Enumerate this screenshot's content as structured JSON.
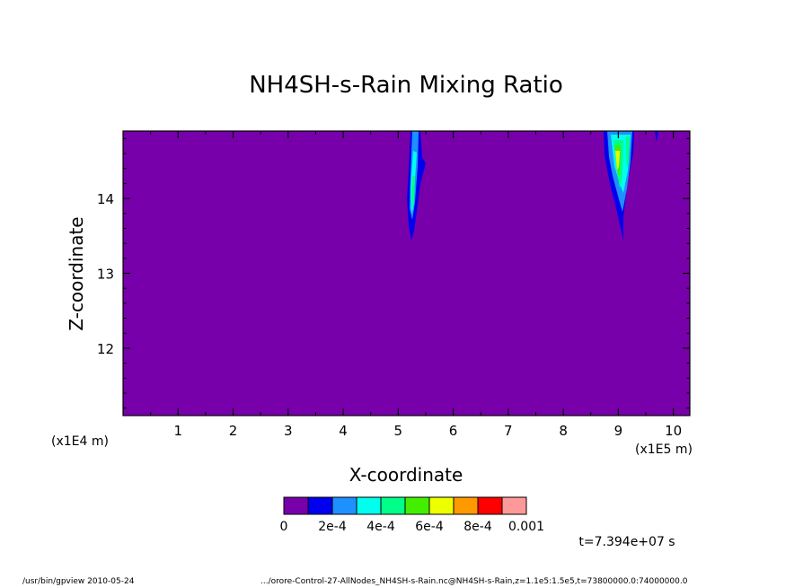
{
  "chart_data": {
    "type": "heatmap",
    "title": "NH4SH-s-Rain Mixing Ratio",
    "xlabel": "X-coordinate",
    "ylabel": "Z-coordinate",
    "x_unit": "(x1E4 m)",
    "x_unit2": "(x1E5 m)",
    "xlim": [
      0,
      10.3
    ],
    "ylim": [
      11.1,
      14.9
    ],
    "x_ticks": [
      1,
      2,
      3,
      4,
      5,
      6,
      7,
      8,
      9,
      10
    ],
    "y_ticks": [
      12,
      13,
      14
    ],
    "x_tick_labels": [
      "1",
      "2",
      "3",
      "4",
      "5",
      "6",
      "7",
      "8",
      "9",
      "10"
    ],
    "y_tick_labels": [
      "12",
      "13",
      "14"
    ],
    "background_value": 0,
    "colorbar": {
      "colors": [
        "#7800aa",
        "#0000ee",
        "#1e90ff",
        "#00ffee",
        "#00ff88",
        "#44ee00",
        "#eeff00",
        "#ff9900",
        "#ff0000",
        "#ff9999"
      ],
      "labels": [
        "0",
        "2e-4",
        "4e-4",
        "6e-4",
        "8e-4",
        "0.001"
      ]
    },
    "features": [
      {
        "x": 5.3,
        "z_top": 14.9,
        "z_bottom": 13.45,
        "max_value": 0.0006
      },
      {
        "x": 9.0,
        "z_top": 14.9,
        "z_bottom": 13.4,
        "max_value": 0.0008
      }
    ],
    "time_label": "t=7.394e+07 s"
  },
  "footer": {
    "left": "/usr/bin/gpview   2010-05-24",
    "right": ".../orore-Control-27-AllNodes_NH4SH-s-Rain.nc@NH4SH-s-Rain,z=1.1e5:1.5e5,t=73800000.0:74000000.0"
  }
}
